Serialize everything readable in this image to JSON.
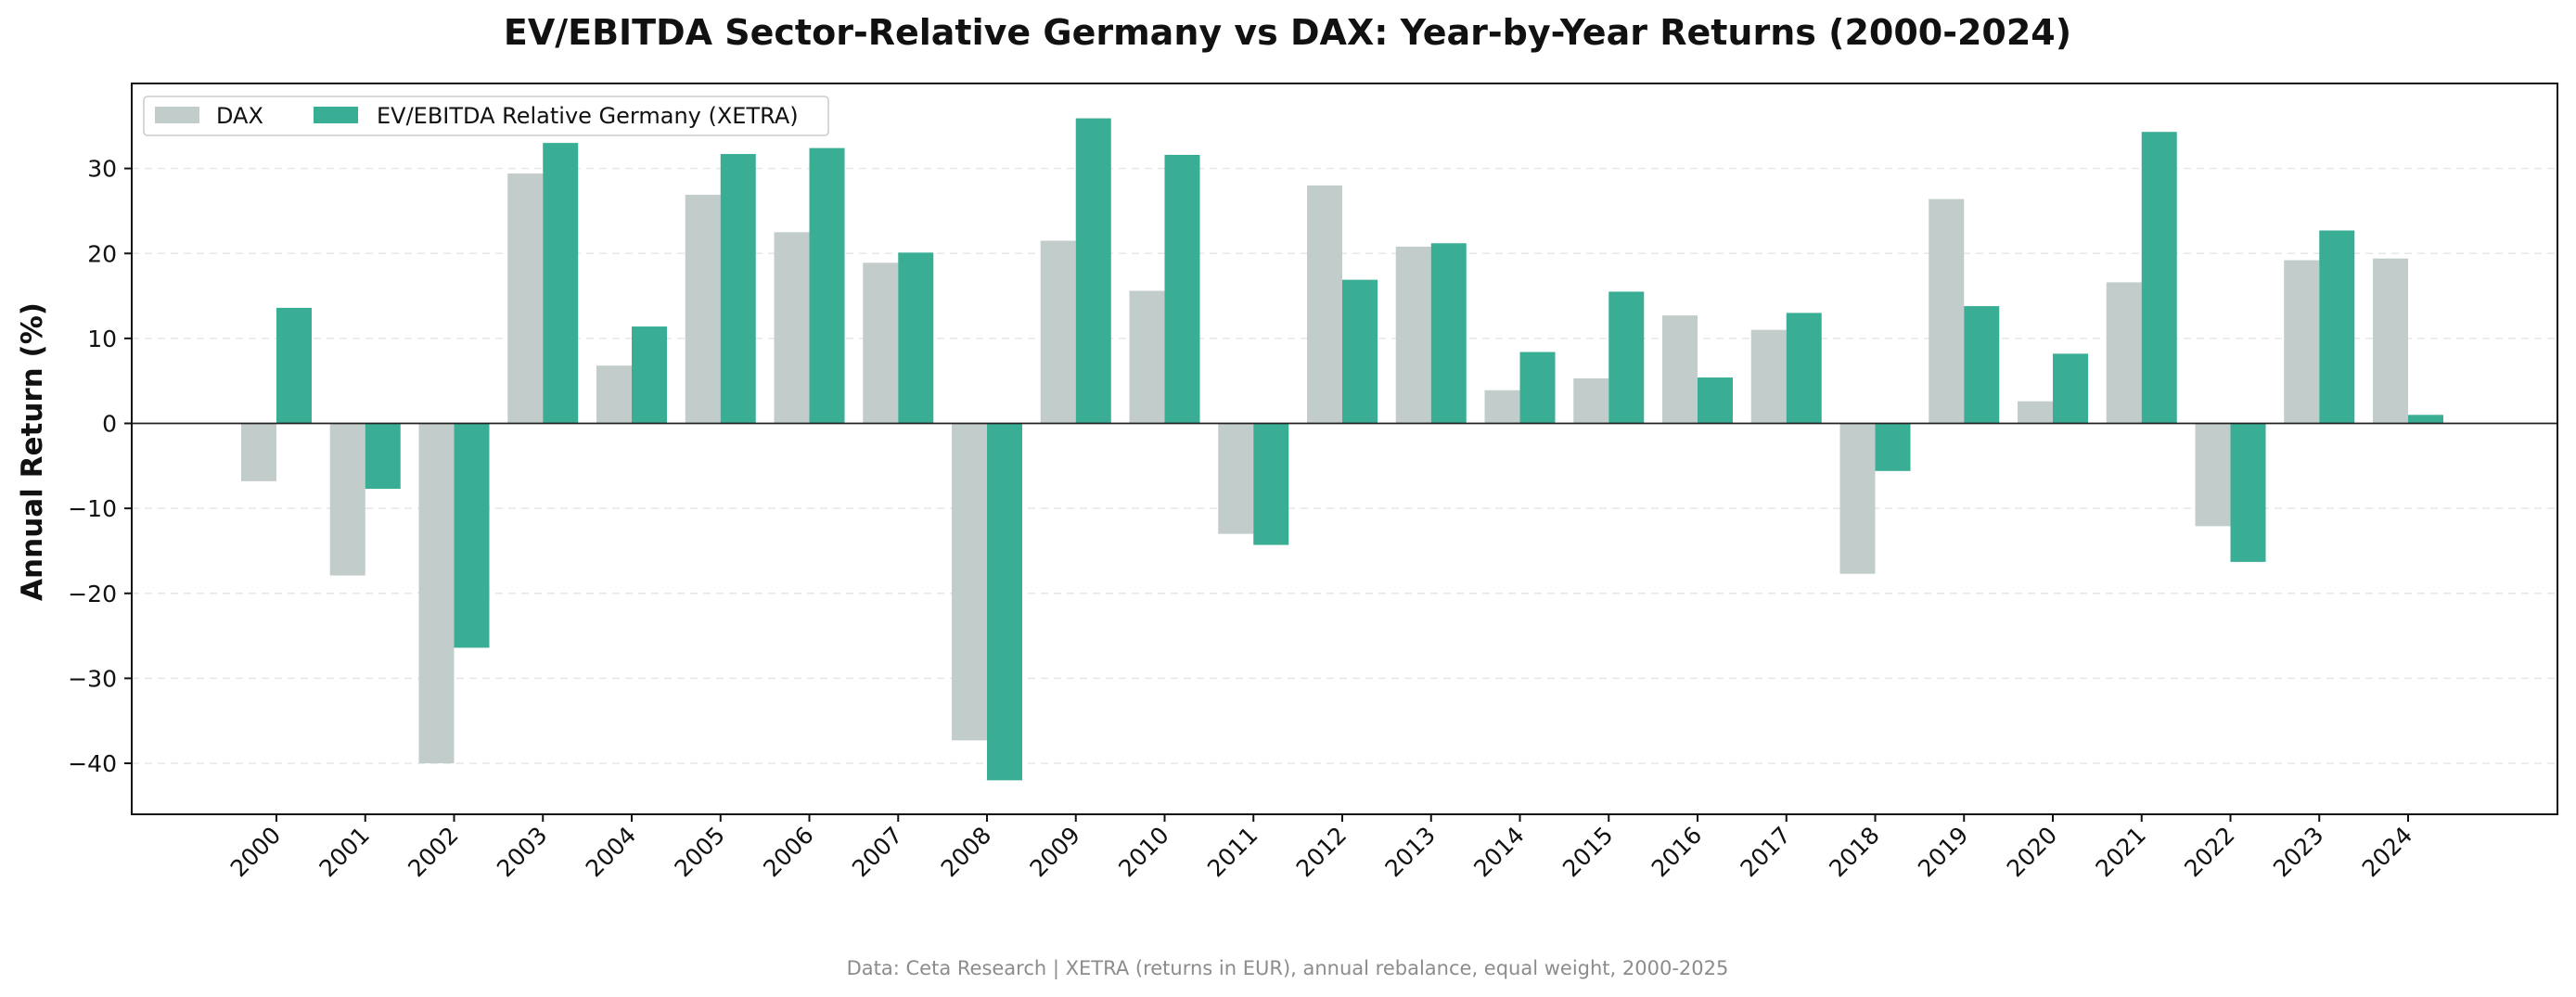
{
  "colors": {
    "dax": "#c2cccb",
    "strategy": "#3aae94",
    "zero_line": "#222222",
    "grid": "#e6e6e6",
    "axis": "#111111",
    "footnote": "#8c8c8c"
  },
  "chart_data": {
    "type": "bar",
    "title": "EV/EBITDA Sector-Relative Germany vs DAX: Year-by-Year Returns (2000-2024)",
    "xlabel": "",
    "ylabel": "Annual Return (%)",
    "ylim": [
      -46,
      40
    ],
    "yticks": [
      30,
      20,
      10,
      0,
      -10,
      -20,
      -30,
      -40
    ],
    "ytick_labels": [
      "30",
      "20",
      "10",
      "0",
      "−10",
      "−20",
      "−30",
      "−40"
    ],
    "grid": "horizontal dashed",
    "legend_position": "top-left",
    "categories": [
      "2000",
      "2001",
      "2002",
      "2003",
      "2004",
      "2005",
      "2006",
      "2007",
      "2008",
      "2009",
      "2010",
      "2011",
      "2012",
      "2013",
      "2014",
      "2015",
      "2016",
      "2017",
      "2018",
      "2019",
      "2020",
      "2021",
      "2022",
      "2023",
      "2024"
    ],
    "series": [
      {
        "name": "DAX",
        "color_key": "dax",
        "values": [
          -6.8,
          -17.9,
          -40.0,
          29.4,
          6.8,
          26.9,
          22.5,
          18.9,
          -37.3,
          21.5,
          15.6,
          -13.0,
          28.0,
          20.8,
          3.9,
          5.3,
          12.7,
          11.0,
          -17.7,
          26.4,
          2.6,
          16.6,
          -12.1,
          19.2,
          19.4
        ]
      },
      {
        "name": "EV/EBITDA Relative Germany (XETRA)",
        "color_key": "strategy",
        "values": [
          13.6,
          -7.7,
          -26.4,
          33.0,
          11.4,
          31.7,
          32.4,
          20.1,
          -42.0,
          35.9,
          31.6,
          -14.3,
          16.9,
          21.2,
          8.4,
          15.5,
          5.4,
          13.0,
          -5.6,
          13.8,
          8.2,
          34.3,
          -16.3,
          22.7,
          1.0
        ]
      }
    ]
  },
  "footnote": "Data: Ceta Research | XETRA (returns in EUR), annual rebalance, equal weight, 2000-2025"
}
